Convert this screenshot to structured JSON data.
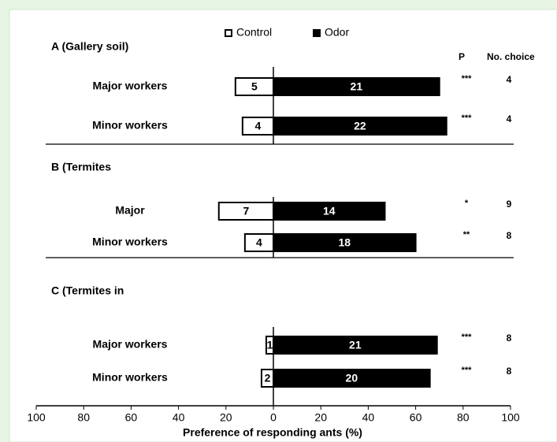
{
  "chart_data": {
    "type": "bar",
    "orientation": "horizontal",
    "xlabel": "Preference of responding ants (%)",
    "xlim": [
      -100,
      100
    ],
    "xticks": [
      {
        "value": -100,
        "label": "100"
      },
      {
        "value": -80,
        "label": "80"
      },
      {
        "value": -60,
        "label": "60"
      },
      {
        "value": -40,
        "label": "40"
      },
      {
        "value": -20,
        "label": "20"
      },
      0,
      20,
      40,
      60,
      80,
      100
    ],
    "series": [
      {
        "name": "Control",
        "color": "#ffffff"
      },
      {
        "name": "Odor",
        "color": "#000000"
      }
    ],
    "p_header": "P",
    "n_header": "No. choice",
    "panels": [
      {
        "title": "A (Gallery soil)",
        "categories": [
          "Major workers",
          "Minor workers"
        ],
        "series": [
          {
            "values": [
              -16,
              -13
            ],
            "counts": [
              5,
              4
            ]
          },
          {
            "values": [
              70,
              73
            ],
            "counts": [
              21,
              22
            ]
          }
        ],
        "p": [
          "***",
          "***"
        ],
        "n": [
          4,
          4
        ]
      },
      {
        "title": "B (Termites",
        "categories": [
          "Major",
          "Minor workers"
        ],
        "series": [
          {
            "values": [
              -23,
              -12
            ],
            "counts": [
              7,
              4
            ]
          },
          {
            "values": [
              47,
              60
            ],
            "counts": [
              14,
              18
            ]
          }
        ],
        "p": [
          "*",
          "**"
        ],
        "n": [
          9,
          8
        ]
      },
      {
        "title": "C (Termites in",
        "categories": [
          "Major workers",
          "Minor workers"
        ],
        "series": [
          {
            "values": [
              -3,
              -5
            ],
            "counts": [
              1,
              2
            ]
          },
          {
            "values": [
              69,
              66
            ],
            "counts": [
              21,
              20
            ]
          }
        ],
        "p": [
          "***",
          "***"
        ],
        "n": [
          8,
          8
        ]
      }
    ]
  }
}
